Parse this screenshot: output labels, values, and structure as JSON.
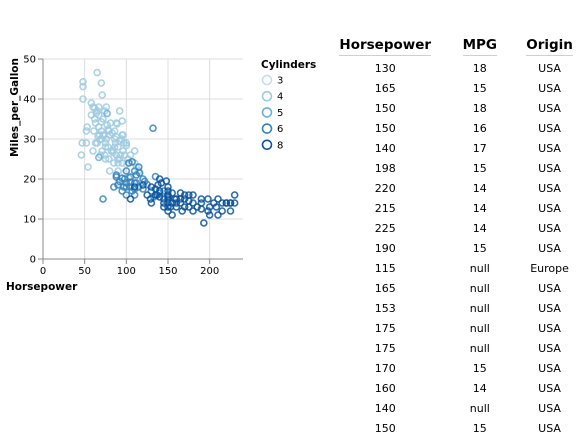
{
  "chart_data": {
    "type": "scatter",
    "xlabel": "Horsepower",
    "ylabel": "Miles_per_Gallon",
    "xlim": [
      0,
      240
    ],
    "ylim": [
      0,
      50
    ],
    "xticks": [
      0,
      50,
      100,
      150,
      200
    ],
    "yticks": [
      0,
      10,
      20,
      30,
      40,
      50
    ],
    "grid": true,
    "legend": {
      "title": "Cylinders",
      "placement": "right",
      "entries": [
        "3",
        "4",
        "5",
        "6",
        "8"
      ]
    },
    "colors": {
      "3": "#c6dbef",
      "4": "#9ecae1",
      "5": "#6baed6",
      "6": "#3182bd",
      "8": "#08519c"
    },
    "series": [
      {
        "name": "3",
        "points": [
          [
            90,
            19
          ],
          [
            97,
            21.5
          ],
          [
            110,
            18.5
          ],
          [
            100,
            23.7
          ]
        ]
      },
      {
        "name": "4",
        "points": [
          [
            46,
            26
          ],
          [
            47,
            29
          ],
          [
            48,
            43.1
          ],
          [
            48,
            44.3
          ],
          [
            52,
            29
          ],
          [
            52,
            32
          ],
          [
            53,
            33
          ],
          [
            54,
            23
          ],
          [
            58,
            36
          ],
          [
            60,
            27
          ],
          [
            61,
            32
          ],
          [
            62,
            35
          ],
          [
            63,
            34
          ],
          [
            65,
            37
          ],
          [
            65,
            29
          ],
          [
            65,
            46.6
          ],
          [
            67,
            33
          ],
          [
            67,
            38
          ],
          [
            68,
            29.8
          ],
          [
            69,
            26
          ],
          [
            70,
            30
          ],
          [
            70,
            34.3
          ],
          [
            70,
            44
          ],
          [
            71,
            27
          ],
          [
            72,
            35
          ],
          [
            72,
            31
          ],
          [
            74,
            26
          ],
          [
            75,
            29
          ],
          [
            75,
            28
          ],
          [
            75,
            25
          ],
          [
            76,
            30
          ],
          [
            78,
            32.4
          ],
          [
            78,
            28
          ],
          [
            79,
            25
          ],
          [
            80,
            31
          ],
          [
            80,
            22
          ],
          [
            82,
            27
          ],
          [
            83,
            31.5
          ],
          [
            84,
            27.2
          ],
          [
            85,
            24
          ],
          [
            86,
            30
          ],
          [
            86,
            28
          ],
          [
            87,
            29
          ],
          [
            88,
            26
          ],
          [
            88,
            30.5
          ],
          [
            90,
            28
          ],
          [
            90,
            25
          ],
          [
            90,
            24
          ],
          [
            92,
            25
          ],
          [
            92,
            29.5
          ],
          [
            93,
            26
          ],
          [
            95,
            24
          ],
          [
            95,
            31
          ],
          [
            96,
            27
          ],
          [
            97,
            29
          ],
          [
            98,
            26
          ],
          [
            100,
            29
          ],
          [
            102,
            25
          ],
          [
            105,
            26
          ],
          [
            110,
            27
          ],
          [
            110,
            24
          ],
          [
            115,
            22
          ],
          [
            88,
            34
          ],
          [
            92,
            37
          ],
          [
            95,
            34.5
          ],
          [
            70,
            32
          ],
          [
            60,
            38
          ],
          [
            74,
            37
          ],
          [
            67,
            36
          ],
          [
            48,
            40
          ],
          [
            84,
            26.6
          ],
          [
            63,
            29
          ],
          [
            79,
            32
          ],
          [
            96,
            31
          ],
          [
            90,
            22
          ],
          [
            100,
            28.4
          ],
          [
            112,
            23
          ],
          [
            68,
            31
          ],
          [
            76,
            38
          ],
          [
            86,
            32
          ],
          [
            58,
            39
          ],
          [
            62,
            37.7
          ],
          [
            64,
            36.4
          ],
          [
            66,
            30.7
          ],
          [
            71,
            41
          ],
          [
            73,
            30.9
          ],
          [
            77,
            33.5
          ],
          [
            81,
            34
          ],
          [
            89,
            33.8
          ],
          [
            94,
            30
          ]
        ]
      },
      {
        "name": "5",
        "points": [
          [
            67,
            25.4
          ],
          [
            77,
            36.4
          ],
          [
            103,
            20.3
          ]
        ]
      },
      {
        "name": "6",
        "points": [
          [
            72,
            15
          ],
          [
            85,
            18
          ],
          [
            88,
            21
          ],
          [
            90,
            18.5
          ],
          [
            95,
            17
          ],
          [
            97,
            18
          ],
          [
            98,
            20
          ],
          [
            100,
            18
          ],
          [
            100,
            16
          ],
          [
            100,
            19
          ],
          [
            105,
            18
          ],
          [
            105,
            20.5
          ],
          [
            107,
            17
          ],
          [
            110,
            19
          ],
          [
            110,
            16
          ],
          [
            110,
            17.5
          ],
          [
            112,
            19
          ],
          [
            115,
            18
          ],
          [
            120,
            17.5
          ],
          [
            120,
            20
          ],
          [
            122,
            19.4
          ],
          [
            125,
            18.6
          ],
          [
            130,
            17
          ],
          [
            133,
            15.5
          ],
          [
            135,
            20.6
          ],
          [
            140,
            16.5
          ],
          [
            145,
            17
          ],
          [
            150,
            16
          ],
          [
            132,
            32.7
          ],
          [
            103,
            24
          ],
          [
            107,
            24.3
          ],
          [
            110,
            22
          ],
          [
            112,
            21
          ],
          [
            115,
            23
          ],
          [
            116,
            21.5
          ],
          [
            100,
            22
          ],
          [
            95,
            20.2
          ],
          [
            92,
            19.4
          ],
          [
            88,
            20.5
          ],
          [
            105,
            19.2
          ]
        ]
      },
      {
        "name": "8",
        "points": [
          [
            130,
            18
          ],
          [
            165,
            15
          ],
          [
            150,
            18
          ],
          [
            150,
            16
          ],
          [
            140,
            17
          ],
          [
            198,
            15
          ],
          [
            220,
            14
          ],
          [
            215,
            14
          ],
          [
            225,
            14
          ],
          [
            190,
            15
          ],
          [
            170,
            15
          ],
          [
            160,
            14
          ],
          [
            150,
            15
          ],
          [
            225,
            14
          ],
          [
            210,
            11
          ],
          [
            200,
            11
          ],
          [
            193,
            9
          ],
          [
            180,
            12
          ],
          [
            175,
            13
          ],
          [
            153,
            13
          ],
          [
            150,
            14
          ],
          [
            155,
            14
          ],
          [
            160,
            15
          ],
          [
            167,
            12
          ],
          [
            170,
            13
          ],
          [
            180,
            16
          ],
          [
            230,
            16
          ],
          [
            145,
            14
          ],
          [
            137,
            16
          ],
          [
            150,
            17
          ],
          [
            140,
            15.5
          ],
          [
            130,
            14
          ],
          [
            145,
            13
          ],
          [
            150,
            13
          ],
          [
            158,
            15
          ],
          [
            165,
            14
          ],
          [
            175,
            16
          ],
          [
            190,
            14
          ],
          [
            208,
            13
          ],
          [
            215,
            12
          ],
          [
            220,
            14
          ],
          [
            225,
            12
          ],
          [
            230,
            14
          ],
          [
            198,
            12
          ],
          [
            185,
            13
          ],
          [
            138,
            18.5
          ],
          [
            142,
            19
          ],
          [
            140,
            20
          ],
          [
            148,
            19.5
          ],
          [
            155,
            16.5
          ],
          [
            129,
            15
          ],
          [
            110,
            18
          ],
          [
            120,
            18.5
          ],
          [
            125,
            16
          ],
          [
            135,
            17.5
          ],
          [
            150,
            15.5
          ],
          [
            160,
            13
          ],
          [
            165,
            16.5
          ],
          [
            170,
            16
          ],
          [
            175,
            14.5
          ],
          [
            180,
            14
          ],
          [
            190,
            12.5
          ],
          [
            200,
            13
          ],
          [
            205,
            14
          ],
          [
            210,
            15
          ],
          [
            150,
            12
          ],
          [
            155,
            11
          ],
          [
            145,
            15
          ],
          [
            135,
            16
          ],
          [
            105,
            15
          ]
        ]
      }
    ]
  },
  "table": {
    "headers": [
      "Horsepower",
      "MPG",
      "Origin"
    ],
    "rows": [
      [
        "130",
        "18",
        "USA"
      ],
      [
        "165",
        "15",
        "USA"
      ],
      [
        "150",
        "18",
        "USA"
      ],
      [
        "150",
        "16",
        "USA"
      ],
      [
        "140",
        "17",
        "USA"
      ],
      [
        "198",
        "15",
        "USA"
      ],
      [
        "220",
        "14",
        "USA"
      ],
      [
        "215",
        "14",
        "USA"
      ],
      [
        "225",
        "14",
        "USA"
      ],
      [
        "190",
        "15",
        "USA"
      ],
      [
        "115",
        "null",
        "Europe"
      ],
      [
        "165",
        "null",
        "USA"
      ],
      [
        "153",
        "null",
        "USA"
      ],
      [
        "175",
        "null",
        "USA"
      ],
      [
        "175",
        "null",
        "USA"
      ],
      [
        "170",
        "15",
        "USA"
      ],
      [
        "160",
        "14",
        "USA"
      ],
      [
        "140",
        "null",
        "USA"
      ],
      [
        "150",
        "15",
        "USA"
      ]
    ]
  }
}
